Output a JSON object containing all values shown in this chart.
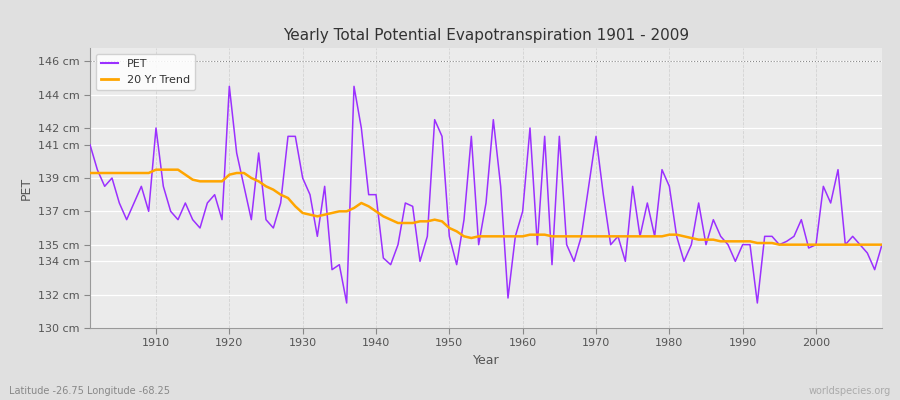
{
  "title": "Yearly Total Potential Evapotranspiration 1901 - 2009",
  "xlabel": "Year",
  "ylabel": "PET",
  "bottom_left_label": "Latitude -26.75 Longitude -68.25",
  "bottom_right_label": "worldspecies.org",
  "pet_color": "#9B30FF",
  "trend_color": "#FFA500",
  "fig_facecolor": "#E8E8E8",
  "plot_facecolor": "#EBEBEB",
  "ylim_bottom": 130,
  "ylim_top": 146.8,
  "years": [
    1901,
    1902,
    1903,
    1904,
    1905,
    1906,
    1907,
    1908,
    1909,
    1910,
    1911,
    1912,
    1913,
    1914,
    1915,
    1916,
    1917,
    1918,
    1919,
    1920,
    1921,
    1922,
    1923,
    1924,
    1925,
    1926,
    1927,
    1928,
    1929,
    1930,
    1931,
    1932,
    1933,
    1934,
    1935,
    1936,
    1937,
    1938,
    1939,
    1940,
    1941,
    1942,
    1943,
    1944,
    1945,
    1946,
    1947,
    1948,
    1949,
    1950,
    1951,
    1952,
    1953,
    1954,
    1955,
    1956,
    1957,
    1958,
    1959,
    1960,
    1961,
    1962,
    1963,
    1964,
    1965,
    1966,
    1967,
    1968,
    1969,
    1970,
    1971,
    1972,
    1973,
    1974,
    1975,
    1976,
    1977,
    1978,
    1979,
    1980,
    1981,
    1982,
    1983,
    1984,
    1985,
    1986,
    1987,
    1988,
    1989,
    1990,
    1991,
    1992,
    1993,
    1994,
    1995,
    1996,
    1997,
    1998,
    1999,
    2000,
    2001,
    2002,
    2003,
    2004,
    2005,
    2006,
    2007,
    2008,
    2009
  ],
  "pet_values": [
    141.0,
    139.5,
    138.5,
    139.0,
    137.5,
    136.5,
    137.5,
    138.5,
    137.0,
    142.0,
    138.5,
    137.0,
    136.5,
    137.5,
    136.5,
    136.0,
    137.5,
    138.0,
    136.5,
    144.5,
    140.5,
    138.5,
    136.5,
    140.5,
    136.5,
    136.0,
    137.5,
    141.5,
    141.5,
    139.0,
    138.0,
    135.5,
    138.5,
    133.5,
    133.8,
    131.5,
    144.5,
    142.0,
    138.0,
    138.0,
    134.2,
    133.8,
    135.0,
    137.5,
    137.3,
    134.0,
    135.5,
    142.5,
    141.5,
    135.5,
    133.8,
    136.5,
    141.5,
    135.0,
    137.5,
    142.5,
    138.5,
    131.8,
    135.5,
    137.0,
    142.0,
    135.0,
    141.5,
    133.8,
    141.5,
    135.0,
    134.0,
    135.5,
    138.5,
    141.5,
    138.0,
    135.0,
    135.5,
    134.0,
    138.5,
    135.5,
    137.5,
    135.5,
    139.5,
    138.5,
    135.5,
    134.0,
    135.0,
    137.5,
    135.0,
    136.5,
    135.5,
    135.0,
    134.0,
    135.0,
    135.0,
    131.5,
    135.5,
    135.5,
    135.0,
    135.2,
    135.5,
    136.5,
    134.8,
    135.0,
    138.5,
    137.5,
    139.5,
    135.0,
    135.5,
    135.0,
    134.5,
    133.5,
    135.0
  ],
  "trend_values": [
    139.3,
    139.3,
    139.3,
    139.3,
    139.3,
    139.3,
    139.3,
    139.3,
    139.3,
    139.5,
    139.5,
    139.5,
    139.5,
    139.2,
    138.9,
    138.8,
    138.8,
    138.8,
    138.8,
    139.2,
    139.3,
    139.3,
    139.0,
    138.8,
    138.5,
    138.3,
    138.0,
    137.8,
    137.3,
    136.9,
    136.8,
    136.7,
    136.8,
    136.9,
    137.0,
    137.0,
    137.2,
    137.5,
    137.3,
    137.0,
    136.7,
    136.5,
    136.3,
    136.3,
    136.3,
    136.4,
    136.4,
    136.5,
    136.4,
    136.0,
    135.8,
    135.5,
    135.4,
    135.5,
    135.5,
    135.5,
    135.5,
    135.5,
    135.5,
    135.5,
    135.6,
    135.6,
    135.6,
    135.5,
    135.5,
    135.5,
    135.5,
    135.5,
    135.5,
    135.5,
    135.5,
    135.5,
    135.5,
    135.5,
    135.5,
    135.5,
    135.5,
    135.5,
    135.5,
    135.6,
    135.6,
    135.5,
    135.4,
    135.3,
    135.3,
    135.3,
    135.2,
    135.2,
    135.2,
    135.2,
    135.2,
    135.1,
    135.1,
    135.1,
    135.0,
    135.0,
    135.0,
    135.0,
    135.0,
    135.0,
    135.0,
    135.0,
    135.0,
    135.0,
    135.0,
    135.0,
    135.0,
    135.0,
    135.0
  ],
  "ytick_positions": [
    130,
    132,
    134,
    135,
    137,
    139,
    141,
    142,
    144,
    146
  ],
  "ytick_labels": [
    "130 cm",
    "132 cm",
    "134 cm",
    "135 cm",
    "137 cm",
    "139 cm",
    "141 cm",
    "142 cm",
    "144 cm",
    "146 cm"
  ],
  "xtick_positions": [
    1910,
    1920,
    1930,
    1940,
    1950,
    1960,
    1970,
    1980,
    1990,
    2000
  ]
}
